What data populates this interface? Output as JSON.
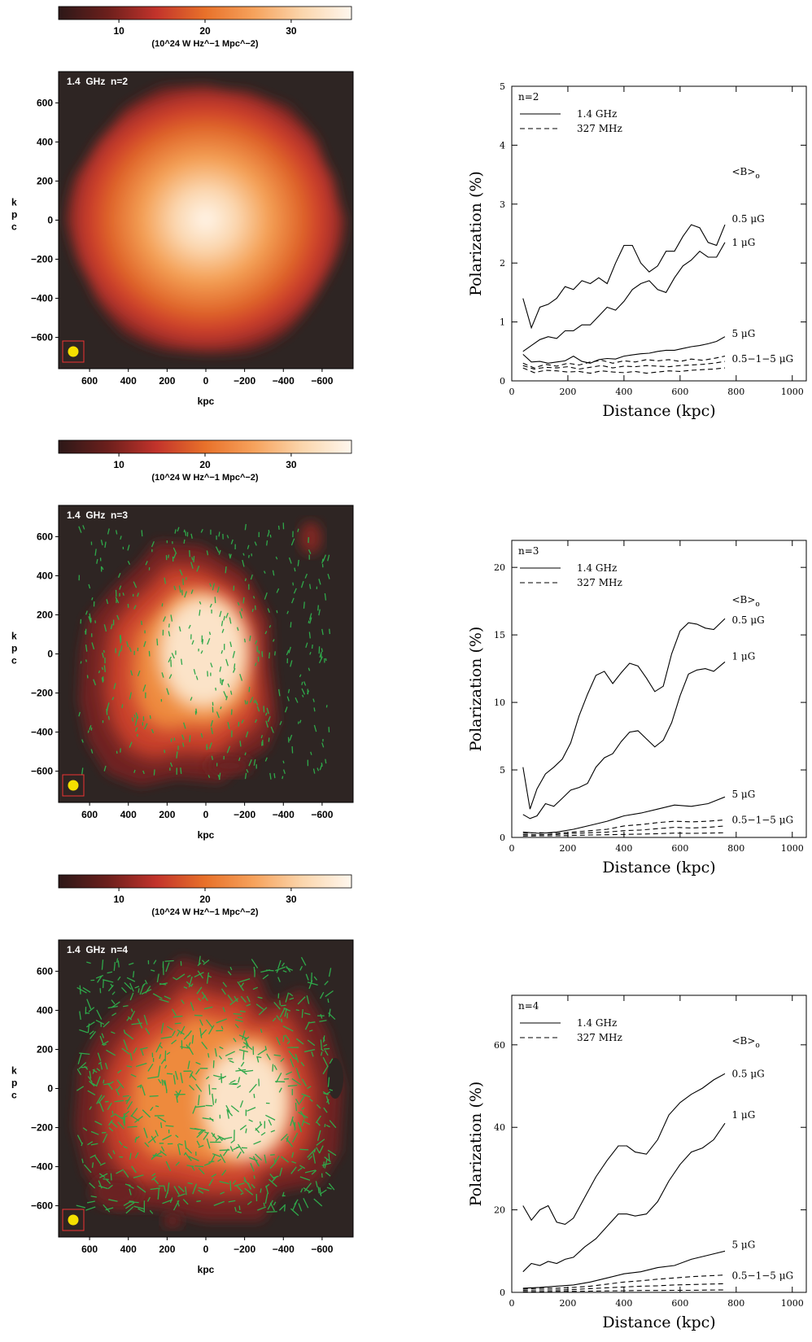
{
  "colorbar": {
    "ticks": [
      10,
      20,
      30
    ],
    "range": [
      3,
      37
    ],
    "unit_label": "(10^24 W Hz^−1 Mpc^−2)",
    "stops": [
      "#2c1818",
      "#6b1f1c",
      "#c2332b",
      "#e8712a",
      "#f6a25c",
      "#fbd6ad",
      "#fff7ee"
    ]
  },
  "map_axes": {
    "x_label": "kpc",
    "y_label": "kpc",
    "ticks": [
      600,
      400,
      200,
      0,
      -200,
      -400,
      -600
    ],
    "range": [
      -760,
      760
    ]
  },
  "panels": [
    {
      "map_label": "1.4 GHz   n=2",
      "curve_legend": "n=2",
      "ylim": [
        0,
        5
      ],
      "yticks": [
        0,
        1,
        2,
        3,
        4,
        5
      ],
      "curve_labels": [
        {
          "text": "<B>o",
          "y": 3.55
        },
        {
          "text": "0.5 μG",
          "y": 2.75
        },
        {
          "text": "1 μG",
          "y": 2.35
        },
        {
          "text": "5 μG",
          "y": 0.8
        },
        {
          "text": "0.5−1−5 μG",
          "y": 0.37
        }
      ]
    },
    {
      "map_label": "1.4 GHz   n=3",
      "curve_legend": "n=3",
      "ylim": [
        0,
        22
      ],
      "yticks": [
        0,
        5,
        10,
        15,
        20
      ],
      "curve_labels": [
        {
          "text": "<B>o",
          "y": 17.6
        },
        {
          "text": "0.5 μG",
          "y": 16.1
        },
        {
          "text": "1 μG",
          "y": 13.4
        },
        {
          "text": "5 μG",
          "y": 3.2
        },
        {
          "text": "0.5−1−5 μG",
          "y": 1.3
        }
      ]
    },
    {
      "map_label": "1.4 GHz   n=4",
      "curve_legend": "n=4",
      "ylim": [
        0,
        72
      ],
      "yticks": [
        0,
        20,
        40,
        60
      ],
      "curve_labels": [
        {
          "text": "<B>o",
          "y": 61
        },
        {
          "text": "0.5 μG",
          "y": 53
        },
        {
          "text": "1 μG",
          "y": 43
        },
        {
          "text": "5 μG",
          "y": 11.5
        },
        {
          "text": "0.5−1−5 μG",
          "y": 4
        }
      ]
    }
  ],
  "profile_axes": {
    "x_label": "Distance (kpc)",
    "y_label": "Polarization (%)",
    "xlim": [
      0,
      1050
    ],
    "xticks": [
      0,
      200,
      400,
      600,
      800,
      1000
    ]
  },
  "legend": {
    "solid": "1.4 GHz",
    "dashed": "327 MHz"
  },
  "chart_data": [
    {
      "type": "line",
      "panel": "n=2",
      "xlabel": "Distance (kpc)",
      "ylabel": "Polarization (%)",
      "xlim": [
        0,
        1050
      ],
      "ylim": [
        0,
        5
      ],
      "series": [
        {
          "name": "1.4 GHz 0.5 μG",
          "style": "solid",
          "x": [
            40,
            70,
            100,
            130,
            160,
            190,
            220,
            250,
            280,
            310,
            340,
            370,
            400,
            430,
            460,
            490,
            520,
            550,
            580,
            610,
            640,
            670,
            700,
            730,
            760
          ],
          "y": [
            1.4,
            0.9,
            1.25,
            1.3,
            1.4,
            1.6,
            1.55,
            1.7,
            1.65,
            1.75,
            1.65,
            2.0,
            2.3,
            2.3,
            2.0,
            1.85,
            1.95,
            2.2,
            2.2,
            2.45,
            2.65,
            2.6,
            2.35,
            2.3,
            2.65
          ]
        },
        {
          "name": "1.4 GHz 1 μG",
          "style": "solid",
          "x": [
            40,
            70,
            100,
            130,
            160,
            190,
            220,
            250,
            280,
            310,
            340,
            370,
            400,
            430,
            460,
            490,
            520,
            550,
            580,
            610,
            640,
            670,
            700,
            730,
            760
          ],
          "y": [
            0.5,
            0.6,
            0.7,
            0.75,
            0.72,
            0.85,
            0.85,
            0.95,
            0.95,
            1.1,
            1.25,
            1.2,
            1.35,
            1.55,
            1.65,
            1.7,
            1.55,
            1.5,
            1.75,
            1.95,
            2.05,
            2.2,
            2.1,
            2.1,
            2.35
          ]
        },
        {
          "name": "1.4 GHz 5 μG",
          "style": "solid",
          "x": [
            40,
            70,
            100,
            130,
            160,
            190,
            220,
            250,
            280,
            310,
            340,
            370,
            400,
            430,
            460,
            490,
            520,
            550,
            580,
            610,
            640,
            670,
            700,
            730,
            760
          ],
          "y": [
            0.45,
            0.32,
            0.33,
            0.3,
            0.32,
            0.34,
            0.42,
            0.33,
            0.3,
            0.36,
            0.38,
            0.37,
            0.42,
            0.44,
            0.46,
            0.47,
            0.5,
            0.52,
            0.52,
            0.55,
            0.58,
            0.6,
            0.63,
            0.67,
            0.75
          ]
        },
        {
          "name": "327 MHz 0.5 μG",
          "style": "dashed",
          "x": [
            40,
            80,
            120,
            160,
            200,
            240,
            280,
            320,
            360,
            400,
            440,
            480,
            520,
            560,
            600,
            640,
            680,
            720,
            760
          ],
          "y": [
            0.3,
            0.22,
            0.28,
            0.25,
            0.3,
            0.27,
            0.32,
            0.35,
            0.3,
            0.34,
            0.32,
            0.36,
            0.34,
            0.36,
            0.33,
            0.37,
            0.35,
            0.38,
            0.42
          ]
        },
        {
          "name": "327 MHz 1 μG",
          "style": "dashed",
          "x": [
            40,
            80,
            120,
            160,
            200,
            240,
            280,
            320,
            360,
            400,
            440,
            480,
            520,
            560,
            600,
            640,
            680,
            720,
            760
          ],
          "y": [
            0.26,
            0.2,
            0.23,
            0.22,
            0.24,
            0.2,
            0.23,
            0.26,
            0.22,
            0.25,
            0.24,
            0.26,
            0.25,
            0.24,
            0.26,
            0.27,
            0.28,
            0.3,
            0.33
          ]
        },
        {
          "name": "327 MHz 5 μG",
          "style": "dashed",
          "x": [
            40,
            80,
            120,
            160,
            200,
            240,
            280,
            320,
            360,
            400,
            440,
            480,
            520,
            560,
            600,
            640,
            680,
            720,
            760
          ],
          "y": [
            0.22,
            0.14,
            0.18,
            0.17,
            0.15,
            0.16,
            0.13,
            0.17,
            0.15,
            0.14,
            0.16,
            0.13,
            0.15,
            0.17,
            0.16,
            0.18,
            0.19,
            0.2,
            0.22
          ]
        }
      ]
    },
    {
      "type": "line",
      "panel": "n=3",
      "xlabel": "Distance (kpc)",
      "ylabel": "Polarization (%)",
      "xlim": [
        0,
        1050
      ],
      "ylim": [
        0,
        22
      ],
      "series": [
        {
          "name": "1.4 GHz 0.5 μG",
          "style": "solid",
          "x": [
            40,
            65,
            90,
            120,
            150,
            180,
            210,
            240,
            270,
            300,
            330,
            360,
            390,
            420,
            450,
            480,
            510,
            540,
            570,
            600,
            630,
            660,
            690,
            720,
            760
          ],
          "y": [
            5.2,
            2.1,
            3.6,
            4.7,
            5.2,
            5.8,
            7.0,
            9.0,
            10.6,
            12.0,
            12.3,
            11.4,
            12.2,
            12.9,
            12.7,
            11.8,
            10.8,
            11.2,
            13.6,
            15.3,
            15.9,
            15.8,
            15.5,
            15.4,
            16.2
          ]
        },
        {
          "name": "1.4 GHz 1 μG",
          "style": "solid",
          "x": [
            40,
            65,
            90,
            120,
            150,
            180,
            210,
            240,
            270,
            300,
            330,
            360,
            390,
            420,
            450,
            480,
            510,
            540,
            570,
            600,
            630,
            660,
            690,
            720,
            760
          ],
          "y": [
            1.7,
            1.4,
            1.6,
            2.5,
            2.3,
            2.9,
            3.5,
            3.7,
            4.0,
            5.2,
            5.9,
            6.2,
            7.1,
            7.8,
            7.9,
            7.3,
            6.7,
            7.2,
            8.5,
            10.5,
            12.1,
            12.4,
            12.5,
            12.3,
            13.0
          ]
        },
        {
          "name": "1.4 GHz 5 μG",
          "style": "solid",
          "x": [
            40,
            100,
            160,
            220,
            280,
            340,
            400,
            460,
            520,
            580,
            640,
            700,
            760
          ],
          "y": [
            0.4,
            0.3,
            0.4,
            0.6,
            0.9,
            1.2,
            1.6,
            1.8,
            2.1,
            2.4,
            2.3,
            2.5,
            3.0
          ]
        },
        {
          "name": "327 MHz 0.5 μG",
          "style": "dashed",
          "x": [
            40,
            100,
            160,
            220,
            280,
            340,
            400,
            460,
            520,
            580,
            640,
            700,
            760
          ],
          "y": [
            0.3,
            0.35,
            0.3,
            0.4,
            0.5,
            0.6,
            0.85,
            0.95,
            1.1,
            1.2,
            1.15,
            1.2,
            1.3
          ]
        },
        {
          "name": "327 MHz 1 μG",
          "style": "dashed",
          "x": [
            40,
            100,
            160,
            220,
            280,
            340,
            400,
            460,
            520,
            580,
            640,
            700,
            760
          ],
          "y": [
            0.2,
            0.2,
            0.22,
            0.3,
            0.35,
            0.4,
            0.5,
            0.55,
            0.65,
            0.75,
            0.7,
            0.75,
            0.85
          ]
        },
        {
          "name": "327 MHz 5 μG",
          "style": "dashed",
          "x": [
            40,
            100,
            160,
            220,
            280,
            340,
            400,
            460,
            520,
            580,
            640,
            700,
            760
          ],
          "y": [
            0.1,
            0.12,
            0.12,
            0.15,
            0.18,
            0.2,
            0.22,
            0.25,
            0.28,
            0.32,
            0.3,
            0.32,
            0.35
          ]
        }
      ]
    },
    {
      "type": "line",
      "panel": "n=4",
      "xlabel": "Distance (kpc)",
      "ylabel": "Polarization (%)",
      "xlim": [
        0,
        1050
      ],
      "ylim": [
        0,
        72
      ],
      "series": [
        {
          "name": "1.4 GHz 0.5 μG",
          "style": "solid",
          "x": [
            40,
            70,
            100,
            130,
            160,
            190,
            220,
            260,
            300,
            340,
            380,
            410,
            440,
            480,
            520,
            560,
            600,
            640,
            680,
            720,
            760
          ],
          "y": [
            21,
            17.5,
            20,
            21,
            17,
            16.5,
            18,
            23,
            28,
            32,
            35.5,
            35.5,
            34,
            33.5,
            37,
            43,
            46,
            48,
            49.5,
            51.5,
            53
          ]
        },
        {
          "name": "1.4 GHz 1 μG",
          "style": "solid",
          "x": [
            40,
            70,
            100,
            130,
            160,
            190,
            220,
            260,
            300,
            340,
            380,
            410,
            440,
            480,
            520,
            560,
            600,
            640,
            680,
            720,
            760
          ],
          "y": [
            5,
            7,
            6.5,
            7.5,
            7,
            8,
            8.5,
            11,
            13,
            16,
            19,
            19,
            18.5,
            19,
            22,
            27,
            31,
            34,
            35,
            37,
            41
          ]
        },
        {
          "name": "1.4 GHz 5 μG",
          "style": "solid",
          "x": [
            40,
            100,
            160,
            220,
            280,
            340,
            400,
            460,
            520,
            580,
            640,
            700,
            760
          ],
          "y": [
            1,
            1.2,
            1.5,
            1.8,
            2.5,
            3.5,
            4.5,
            5,
            6,
            6.5,
            8,
            9,
            10
          ]
        },
        {
          "name": "327 MHz 0.5 μG",
          "style": "dashed",
          "x": [
            40,
            100,
            160,
            220,
            280,
            340,
            400,
            460,
            520,
            580,
            640,
            700,
            760
          ],
          "y": [
            0.8,
            1,
            1,
            1.2,
            1.5,
            2,
            2.5,
            2.8,
            3.2,
            3.5,
            3.8,
            4,
            4.2
          ]
        },
        {
          "name": "327 MHz 1 μG",
          "style": "dashed",
          "x": [
            40,
            100,
            160,
            220,
            280,
            340,
            400,
            460,
            520,
            580,
            640,
            700,
            760
          ],
          "y": [
            0.5,
            0.6,
            0.6,
            0.7,
            0.9,
            1.1,
            1.3,
            1.5,
            1.6,
            1.8,
            1.9,
            2,
            2.1
          ]
        },
        {
          "name": "327 MHz 5 μG",
          "style": "dashed",
          "x": [
            40,
            100,
            160,
            220,
            280,
            340,
            400,
            460,
            520,
            580,
            640,
            700,
            760
          ],
          "y": [
            0.2,
            0.2,
            0.25,
            0.25,
            0.3,
            0.35,
            0.4,
            0.45,
            0.45,
            0.5,
            0.5,
            0.55,
            0.6
          ]
        }
      ]
    }
  ]
}
